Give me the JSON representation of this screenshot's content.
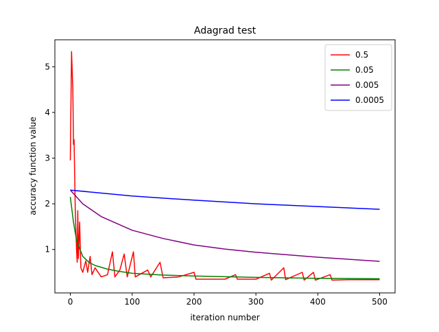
{
  "chart_data": {
    "type": "line",
    "title": "Adagrad test",
    "x_label": "iteration number",
    "y_label": "accuracy function value",
    "xlim": [
      -25,
      525
    ],
    "ylim": [
      0.05,
      5.59
    ],
    "xticks": [
      0,
      100,
      200,
      300,
      400,
      500
    ],
    "yticks": [
      1,
      2,
      3,
      4,
      5
    ],
    "legend": "upper right",
    "series": [
      {
        "name": "0.5",
        "color": "#ff0000",
        "x": [
          0,
          2,
          4,
          5,
          6,
          8,
          10,
          11,
          12,
          13,
          15,
          17,
          20,
          25,
          28,
          32,
          35,
          40,
          50,
          60,
          68,
          72,
          80,
          87,
          92,
          102,
          105,
          125,
          130,
          145,
          150,
          175,
          200,
          203,
          250,
          267,
          270,
          300,
          322,
          325,
          345,
          348,
          375,
          378,
          393,
          396,
          420,
          423,
          450,
          500
        ],
        "values": [
          2.95,
          5.33,
          4.5,
          3.3,
          3.4,
          1.8,
          1.0,
          0.72,
          1.85,
          0.8,
          1.6,
          0.6,
          0.5,
          0.75,
          0.5,
          0.85,
          0.45,
          0.6,
          0.4,
          0.45,
          0.95,
          0.4,
          0.55,
          0.9,
          0.4,
          0.95,
          0.4,
          0.55,
          0.4,
          0.72,
          0.38,
          0.4,
          0.5,
          0.35,
          0.35,
          0.45,
          0.35,
          0.35,
          0.48,
          0.33,
          0.6,
          0.34,
          0.5,
          0.33,
          0.5,
          0.33,
          0.45,
          0.33,
          0.34,
          0.34
        ]
      },
      {
        "name": "0.05",
        "color": "#008000",
        "x": [
          0,
          5,
          10,
          20,
          30,
          40,
          60,
          80,
          100,
          150,
          200,
          300,
          400,
          500
        ],
        "values": [
          2.15,
          1.6,
          1.2,
          0.85,
          0.72,
          0.65,
          0.57,
          0.52,
          0.48,
          0.44,
          0.42,
          0.39,
          0.37,
          0.36
        ]
      },
      {
        "name": "0.005",
        "color": "#800080",
        "x": [
          0,
          10,
          20,
          50,
          100,
          150,
          200,
          250,
          300,
          400,
          500
        ],
        "values": [
          2.3,
          2.15,
          2.0,
          1.72,
          1.42,
          1.24,
          1.1,
          1.01,
          0.94,
          0.83,
          0.74
        ]
      },
      {
        "name": "0.0005",
        "color": "#0000ff",
        "x": [
          0,
          100,
          200,
          300,
          400,
          500
        ],
        "values": [
          2.3,
          2.17,
          2.08,
          2.0,
          1.94,
          1.88
        ]
      }
    ]
  }
}
